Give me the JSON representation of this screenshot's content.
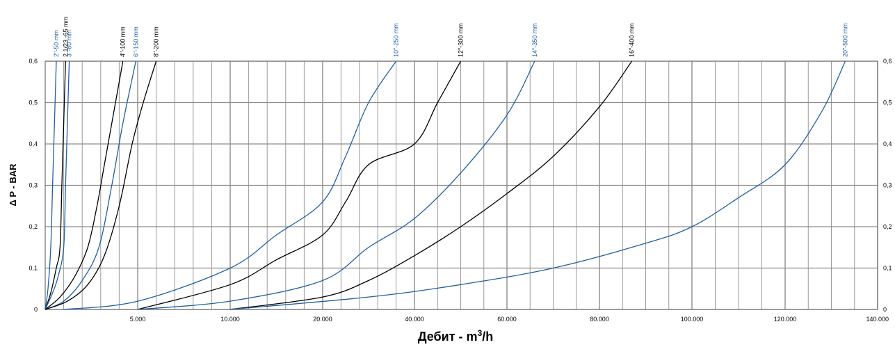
{
  "chart_data": {
    "type": "line",
    "xlabel": "Дебит - m",
    "xlabel_sup": "3",
    "xlabel_suffix": "/h",
    "ylabel": "Δ P - BAR",
    "ylim": [
      0,
      0.6
    ],
    "y_ticks": [
      "0",
      "0,1",
      "0,2",
      "0,3",
      "0,4",
      "0,5",
      "0,6"
    ],
    "y_tick_values": [
      0,
      0.1,
      0.2,
      0.3,
      0.4,
      0.5,
      0.6
    ],
    "x_ticks": [
      {
        "label": "5.000",
        "value": 5000
      },
      {
        "label": "10.000",
        "value": 10000
      },
      {
        "label": "20.000",
        "value": 20000
      },
      {
        "label": "40.000",
        "value": 40000
      },
      {
        "label": "60.000",
        "value": 60000
      },
      {
        "label": "80.000",
        "value": 80000
      },
      {
        "label": "100.000",
        "value": 100000
      },
      {
        "label": "120.000",
        "value": 120000
      },
      {
        "label": "140.000",
        "value": 140000
      }
    ],
    "grid": true,
    "colors": {
      "blue": "#1f5fa3",
      "black": "#000000",
      "grid_major": "#8c8c8c",
      "grid_minor": "#9a9a9a"
    },
    "series": [
      {
        "name": "2\"-50 mm",
        "color": "blue",
        "points": [
          [
            0,
            0
          ],
          [
            150,
            0.05
          ],
          [
            300,
            0.15
          ],
          [
            400,
            0.3
          ],
          [
            500,
            0.45
          ],
          [
            600,
            0.6
          ]
        ]
      },
      {
        "name": "2 1/23 -65 mm",
        "color": "black",
        "points": [
          [
            0,
            0
          ],
          [
            300,
            0.04
          ],
          [
            600,
            0.1
          ],
          [
            800,
            0.15
          ],
          [
            900,
            0.3
          ],
          [
            1000,
            0.45
          ],
          [
            1100,
            0.6
          ]
        ]
      },
      {
        "name": "3\"-80 mm",
        "color": "blue",
        "points": [
          [
            0,
            0
          ],
          [
            400,
            0.04
          ],
          [
            700,
            0.08
          ],
          [
            1000,
            0.15
          ],
          [
            1100,
            0.3
          ],
          [
            1200,
            0.45
          ],
          [
            1300,
            0.6
          ]
        ]
      },
      {
        "name": "4\"-100 mm",
        "color": "black",
        "points": [
          [
            0,
            0
          ],
          [
            800,
            0.03
          ],
          [
            1600,
            0.08
          ],
          [
            2300,
            0.15
          ],
          [
            2800,
            0.25
          ],
          [
            3200,
            0.35
          ],
          [
            3800,
            0.5
          ],
          [
            4200,
            0.6
          ]
        ]
      },
      {
        "name": "6\"-150 mm",
        "color": "blue",
        "points": [
          [
            0,
            0
          ],
          [
            1000,
            0.02
          ],
          [
            2000,
            0.07
          ],
          [
            2900,
            0.15
          ],
          [
            3600,
            0.3
          ],
          [
            4200,
            0.45
          ],
          [
            4900,
            0.6
          ]
        ]
      },
      {
        "name": "8\"-200 mm",
        "color": "black",
        "points": [
          [
            0,
            0
          ],
          [
            1200,
            0.02
          ],
          [
            2300,
            0.06
          ],
          [
            3200,
            0.13
          ],
          [
            4000,
            0.25
          ],
          [
            4700,
            0.4
          ],
          [
            5300,
            0.5
          ],
          [
            6000,
            0.6
          ]
        ]
      },
      {
        "name": "10\"-250 mm",
        "color": "blue",
        "points": [
          [
            1000,
            0
          ],
          [
            5000,
            0.02
          ],
          [
            10000,
            0.1
          ],
          [
            15000,
            0.18
          ],
          [
            20000,
            0.26
          ],
          [
            25000,
            0.37
          ],
          [
            30000,
            0.5
          ],
          [
            36000,
            0.6
          ]
        ]
      },
      {
        "name": "12\"-300 mm",
        "color": "black",
        "points": [
          [
            5000,
            0
          ],
          [
            10000,
            0.06
          ],
          [
            15000,
            0.12
          ],
          [
            20000,
            0.18
          ],
          [
            25000,
            0.26
          ],
          [
            30000,
            0.35
          ],
          [
            40000,
            0.4
          ],
          [
            45000,
            0.5
          ],
          [
            50000,
            0.6
          ]
        ]
      },
      {
        "name": "14\"-350 mm",
        "color": "blue",
        "points": [
          [
            5000,
            0
          ],
          [
            10000,
            0.02
          ],
          [
            20000,
            0.07
          ],
          [
            30000,
            0.15
          ],
          [
            40000,
            0.22
          ],
          [
            50000,
            0.33
          ],
          [
            60000,
            0.47
          ],
          [
            66000,
            0.6
          ]
        ]
      },
      {
        "name": "16\"-400 mm",
        "color": "black",
        "points": [
          [
            10000,
            0
          ],
          [
            20000,
            0.03
          ],
          [
            30000,
            0.07
          ],
          [
            40000,
            0.13
          ],
          [
            50000,
            0.2
          ],
          [
            60000,
            0.28
          ],
          [
            70000,
            0.37
          ],
          [
            80000,
            0.49
          ],
          [
            87000,
            0.6
          ]
        ]
      },
      {
        "name": "20\"-500 mm",
        "color": "blue",
        "points": [
          [
            10000,
            0
          ],
          [
            30000,
            0.03
          ],
          [
            50000,
            0.06
          ],
          [
            70000,
            0.1
          ],
          [
            90000,
            0.16
          ],
          [
            100000,
            0.2
          ],
          [
            110000,
            0.27
          ],
          [
            120000,
            0.35
          ],
          [
            128000,
            0.48
          ],
          [
            133000,
            0.6
          ]
        ]
      }
    ]
  }
}
